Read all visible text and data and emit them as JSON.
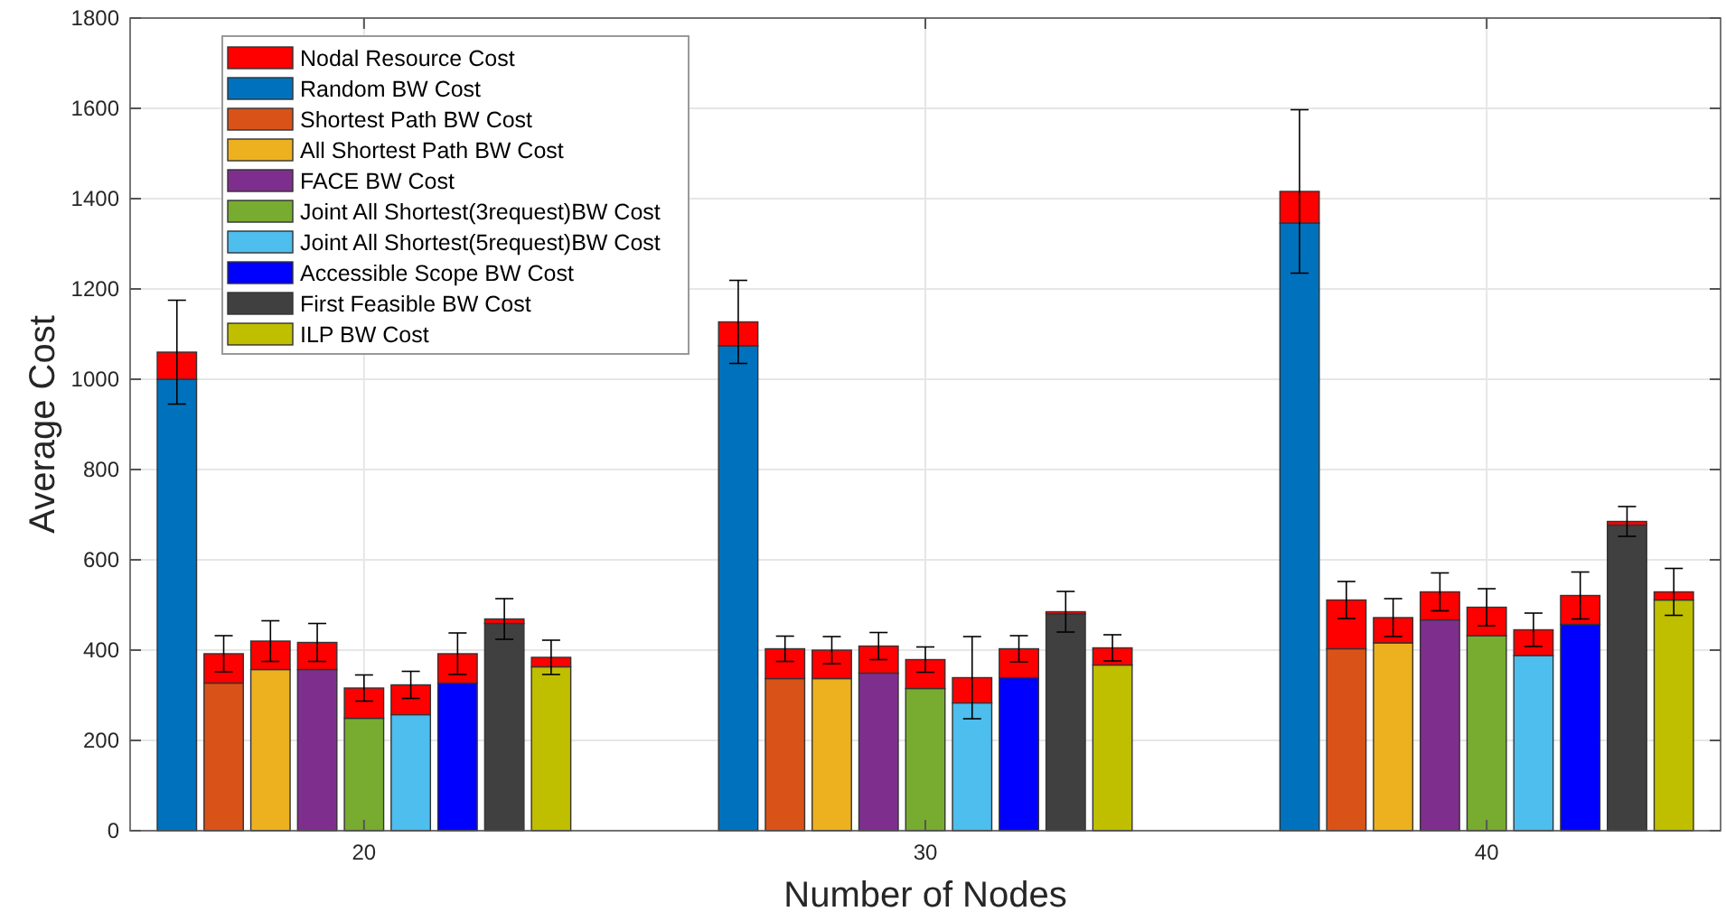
{
  "chart_data": {
    "type": "bar",
    "stacked": true,
    "xlabel": "Number of Nodes",
    "ylabel": "Average Cost",
    "categories": [
      null,
      null,
      null,
      null,
      "20",
      null,
      null,
      null,
      null,
      null,
      null,
      null,
      null,
      null,
      null,
      null,
      "30",
      null,
      null,
      null,
      null,
      null,
      null,
      null,
      null,
      null,
      null,
      null,
      "40",
      null,
      null,
      null,
      null
    ],
    "ylim": [
      0,
      1800
    ],
    "yticks": [
      0,
      200,
      400,
      600,
      800,
      1000,
      1200,
      1400,
      1600,
      1800
    ],
    "grid": true,
    "legend": "top left",
    "series": [
      {
        "name": "Random BW Cost",
        "color": "#0072bd",
        "values": [
          1000,
          null,
          null,
          null,
          null,
          null,
          null,
          null,
          null,
          null,
          null,
          null,
          1074,
          null,
          null,
          null,
          null,
          null,
          null,
          null,
          null,
          null,
          null,
          null,
          1346,
          null,
          null,
          null,
          null,
          null,
          null,
          null,
          null
        ]
      },
      {
        "name": "Shortest Path BW Cost",
        "color": "#d95319",
        "values": [
          null,
          327,
          null,
          null,
          null,
          null,
          null,
          null,
          null,
          null,
          null,
          null,
          null,
          337,
          null,
          null,
          null,
          null,
          null,
          null,
          null,
          null,
          null,
          null,
          null,
          403,
          null,
          null,
          null,
          null,
          null,
          null,
          null
        ]
      },
      {
        "name": "All Shortest Path BW Cost",
        "color": "#edb120",
        "values": [
          null,
          null,
          357,
          null,
          null,
          null,
          null,
          null,
          null,
          null,
          null,
          null,
          null,
          null,
          337,
          null,
          null,
          null,
          null,
          null,
          null,
          null,
          null,
          null,
          null,
          null,
          416,
          null,
          null,
          null,
          null,
          null,
          null
        ]
      },
      {
        "name": "FACE BW Cost",
        "color": "#7e2f8e",
        "values": [
          null,
          null,
          null,
          357,
          null,
          null,
          null,
          null,
          null,
          null,
          null,
          null,
          null,
          null,
          null,
          349,
          null,
          null,
          null,
          null,
          null,
          null,
          null,
          null,
          null,
          null,
          null,
          467,
          null,
          null,
          null,
          null,
          null
        ]
      },
      {
        "name": "Joint All Shortest(3request)BW Cost",
        "color": "#77ac30",
        "values": [
          null,
          null,
          null,
          null,
          249,
          null,
          null,
          null,
          null,
          null,
          null,
          null,
          null,
          null,
          null,
          null,
          315,
          null,
          null,
          null,
          null,
          null,
          null,
          null,
          null,
          null,
          null,
          null,
          432,
          null,
          null,
          null,
          null
        ]
      },
      {
        "name": "Joint All Shortest(5request)BW Cost",
        "color": "#4dbeee",
        "values": [
          null,
          null,
          null,
          null,
          null,
          257,
          null,
          null,
          null,
          null,
          null,
          null,
          null,
          null,
          null,
          null,
          null,
          283,
          null,
          null,
          null,
          null,
          null,
          null,
          null,
          null,
          null,
          null,
          null,
          388,
          null,
          null,
          null
        ]
      },
      {
        "name": "Accessible Scope BW Cost",
        "color": "#0000ff",
        "values": [
          null,
          null,
          null,
          null,
          null,
          null,
          327,
          null,
          null,
          null,
          null,
          null,
          null,
          null,
          null,
          null,
          null,
          null,
          339,
          null,
          null,
          null,
          null,
          null,
          null,
          null,
          null,
          null,
          null,
          null,
          457,
          null,
          null
        ]
      },
      {
        "name": "First Feasible BW Cost",
        "color": "#404040",
        "values": [
          null,
          null,
          null,
          null,
          null,
          null,
          null,
          459,
          null,
          null,
          null,
          null,
          null,
          null,
          null,
          null,
          null,
          null,
          null,
          480,
          null,
          null,
          null,
          null,
          null,
          null,
          null,
          null,
          null,
          null,
          null,
          677,
          null
        ]
      },
      {
        "name": "ILP BW Cost",
        "color": "#bfbf00",
        "values": [
          null,
          null,
          null,
          null,
          null,
          null,
          null,
          null,
          363,
          null,
          null,
          null,
          null,
          null,
          null,
          null,
          null,
          null,
          null,
          null,
          367,
          null,
          null,
          null,
          null,
          null,
          null,
          null,
          null,
          null,
          null,
          null,
          511
        ]
      },
      {
        "name": "Nodal Resource Cost",
        "color": "#ff0000",
        "values": [
          60,
          65,
          63,
          60,
          67,
          66,
          65,
          10,
          21,
          null,
          null,
          null,
          53,
          66,
          63,
          60,
          64,
          56,
          64,
          5,
          38,
          null,
          null,
          null,
          70,
          108,
          56,
          62,
          63,
          57,
          64,
          8,
          18
        ],
        "errors": [
          115,
          40,
          45,
          42,
          29,
          30,
          46,
          45,
          38,
          null,
          null,
          null,
          92,
          28,
          30,
          30,
          28,
          91,
          29,
          45,
          29,
          null,
          null,
          null,
          181,
          41,
          42,
          42,
          41,
          37,
          52,
          33,
          52
        ]
      }
    ]
  }
}
